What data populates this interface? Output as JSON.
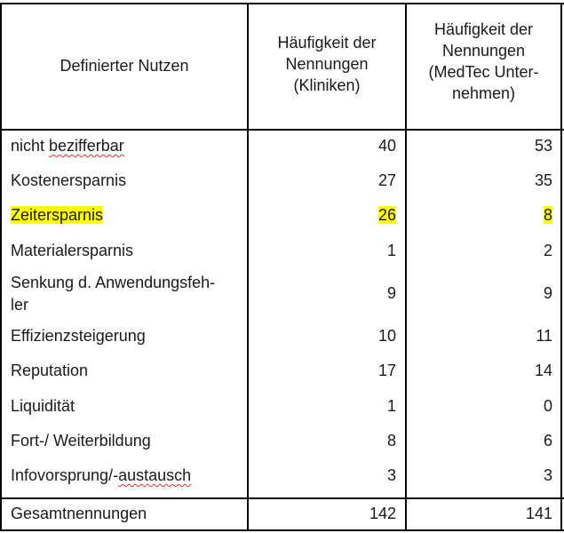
{
  "headers": {
    "col1": "Definierter Nutzen",
    "col2_lines": [
      "Häufigkeit der",
      "Nennungen",
      "(Kliniken)"
    ],
    "col3_lines": [
      "Häufigkeit der",
      "Nennungen",
      "(MedTec Unter-",
      "nehmen)"
    ]
  },
  "rows": [
    {
      "label": "nicht bezifferbar",
      "k": "40",
      "m": "53"
    },
    {
      "label": "Kostenersparnis",
      "k": "27",
      "m": "35"
    },
    {
      "label": "Zeitersparnis",
      "k": "26",
      "m": "8"
    },
    {
      "label": "Materialersparnis",
      "k": "1",
      "m": "2"
    },
    {
      "label_lines": [
        "Senkung d. Anwendungsfeh-",
        "ler"
      ],
      "k": "9",
      "m": "9"
    },
    {
      "label": "Effizienzsteigerung",
      "k": "10",
      "m": "11"
    },
    {
      "label": "Reputation",
      "k": "17",
      "m": "14"
    },
    {
      "label": "Liquidität",
      "k": "1",
      "m": "0"
    },
    {
      "label": "Fort-/ Weiterbildung",
      "k": "8",
      "m": "6"
    },
    {
      "label": "Infovorsprung/-austausch",
      "k": "3",
      "m": "3"
    }
  ],
  "total": {
    "label": "Gesamtnennungen",
    "k": "142",
    "m": "141"
  },
  "colors": {
    "highlight": "#ffff00",
    "spellcheck": "#e03030"
  }
}
